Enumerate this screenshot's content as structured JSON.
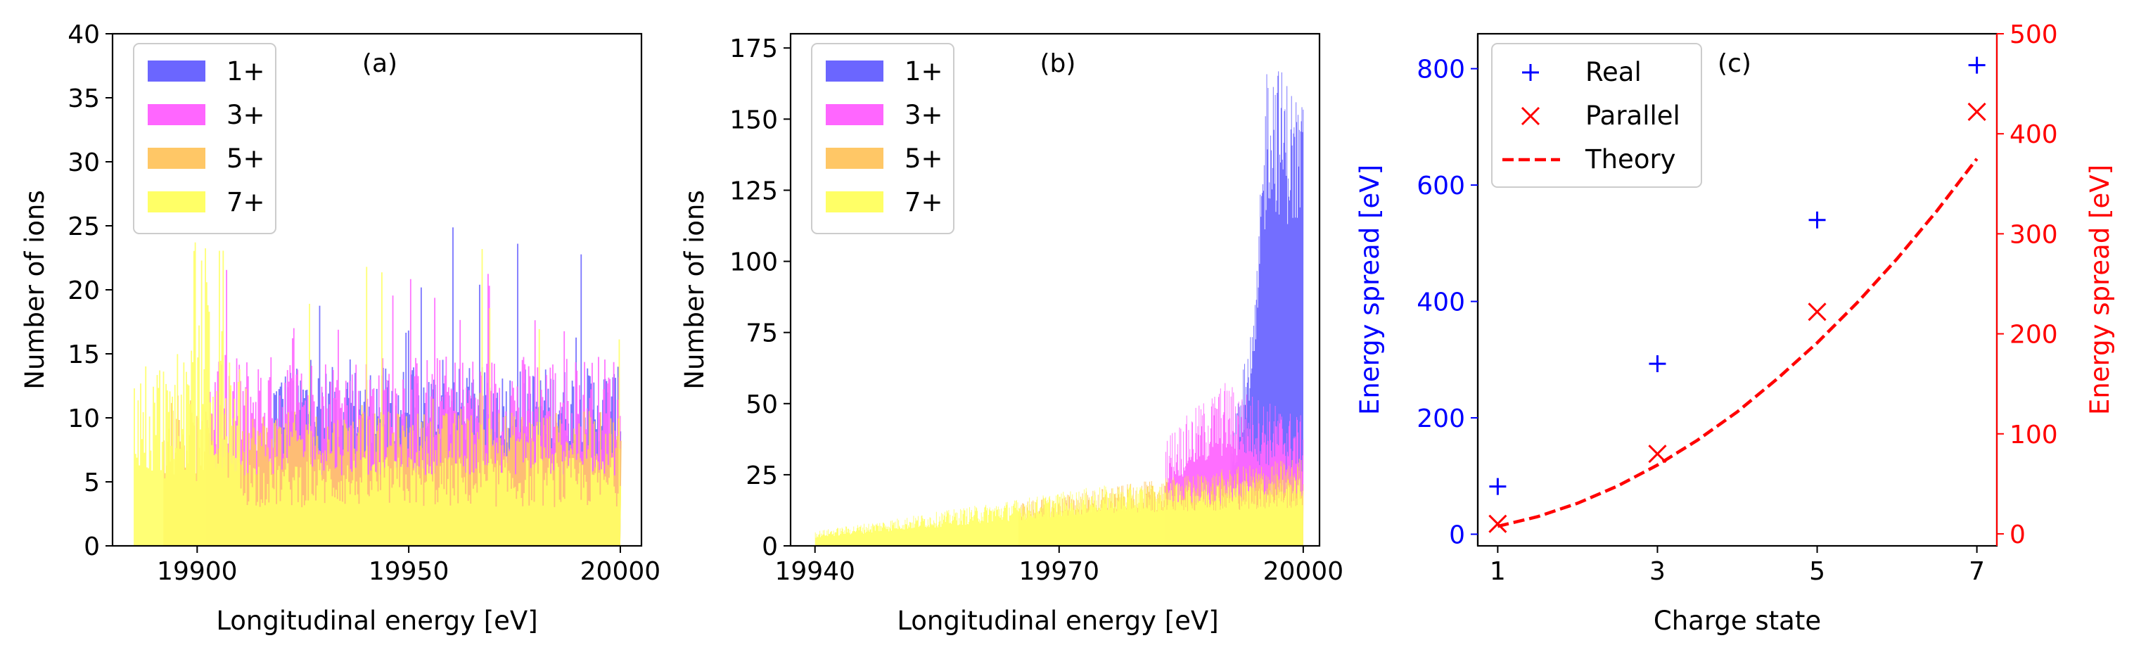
{
  "colors": {
    "s1": "#6b66ff",
    "s3": "#ff66ff",
    "s5": "#ffc766",
    "s7": "#ffff66",
    "real": "#0000ff",
    "parallel": "#ff0000",
    "theory": "#ff0000"
  },
  "chart_data": [
    {
      "type": "area",
      "panel_label": "(a)",
      "xlabel": "Longitudinal energy [eV]",
      "ylabel": "Number of ions",
      "xlim": [
        19880,
        20005
      ],
      "ylim": [
        0,
        40
      ],
      "xticks": [
        19900,
        19950,
        20000
      ],
      "yticks": [
        0,
        5,
        10,
        15,
        20,
        25,
        30,
        35,
        40
      ],
      "legend_position": "upper-left",
      "series": [
        {
          "name": "1+",
          "color_key": "s1",
          "x_start": 19918,
          "x_end": 20000,
          "baseline": 11,
          "noise": 3,
          "peak": 25
        },
        {
          "name": "3+",
          "color_key": "s3",
          "x_start": 19902,
          "x_end": 20000,
          "baseline": 11,
          "noise": 4,
          "peak": 22
        },
        {
          "name": "5+",
          "color_key": "s5",
          "x_start": 19892,
          "x_end": 20000,
          "baseline": 8,
          "noise": 2.5,
          "peak": 12
        },
        {
          "name": "7+",
          "color_key": "s7",
          "x_start": 19885,
          "x_end": 20000,
          "baseline": 5,
          "noise": 2,
          "peak": 24
        }
      ]
    },
    {
      "type": "area",
      "panel_label": "(b)",
      "xlabel": "Longitudinal energy [eV]",
      "ylabel": "Number of ions",
      "xlim": [
        19937,
        20002
      ],
      "ylim": [
        0,
        180
      ],
      "xticks": [
        19940,
        19970,
        20000
      ],
      "yticks": [
        0,
        25,
        50,
        75,
        100,
        125,
        150,
        175
      ],
      "legend_position": "upper-left",
      "series": [
        {
          "name": "1+",
          "color_key": "s1",
          "x_start": 19991,
          "x_end": 20000,
          "peak": 173
        },
        {
          "name": "3+",
          "color_key": "s3",
          "x_start": 19983,
          "x_end": 20000,
          "peak": 65
        },
        {
          "name": "5+",
          "color_key": "s5",
          "x_start": 19965,
          "x_end": 20000,
          "peak": 45
        },
        {
          "name": "7+",
          "color_key": "s7",
          "x_start": 19940,
          "x_end": 20000,
          "peak": 35
        }
      ]
    },
    {
      "type": "scatter",
      "panel_label": "(c)",
      "xlabel": "Charge state",
      "ylabel_left": "Energy spread [eV]",
      "ylabel_right": "Energy spread [eV]",
      "xlim": [
        0.75,
        7.25
      ],
      "ylim_left": [
        -20,
        860
      ],
      "ylim_right": [
        -12,
        500
      ],
      "xticks": [
        1,
        3,
        5,
        7
      ],
      "yticks_left": [
        0,
        200,
        400,
        600,
        800
      ],
      "yticks_right": [
        0,
        100,
        200,
        300,
        400,
        500
      ],
      "legend_position": "upper-left",
      "series": [
        {
          "name": "Real",
          "marker": "+",
          "axis": "left",
          "color_key": "real",
          "x": [
            1,
            3,
            5,
            7
          ],
          "y": [
            82,
            293,
            540,
            806
          ]
        },
        {
          "name": "Parallel",
          "marker": "x",
          "axis": "right",
          "color_key": "parallel",
          "x": [
            1,
            3,
            5,
            7
          ],
          "y": [
            10,
            80,
            222,
            422
          ]
        },
        {
          "name": "Theory",
          "marker": "dashed-line",
          "axis": "right",
          "color_key": "theory",
          "x": [
            1,
            1.5,
            2,
            2.5,
            3,
            3.5,
            4,
            4.5,
            5,
            5.5,
            6,
            6.5,
            7
          ],
          "y": [
            7.6,
            17.2,
            30.6,
            47.8,
            68.8,
            93.6,
            122,
            155,
            191,
            231,
            275,
            323,
            375
          ]
        }
      ]
    }
  ]
}
